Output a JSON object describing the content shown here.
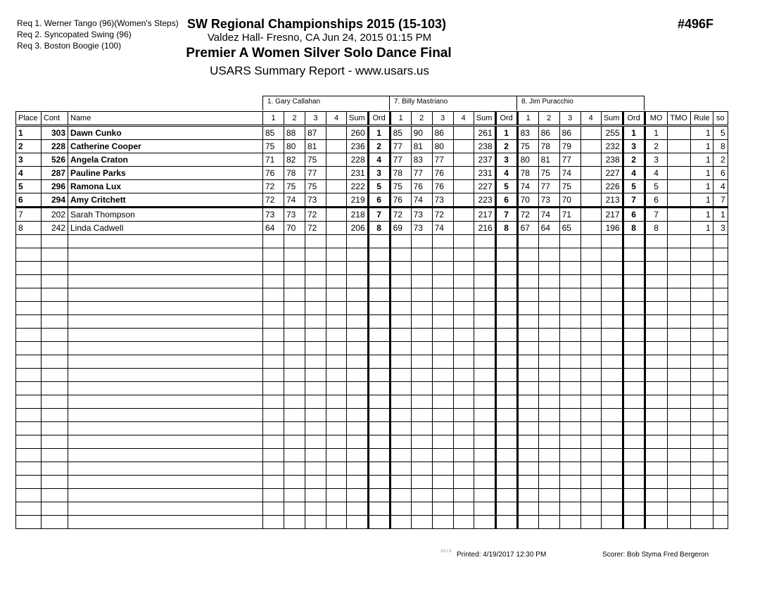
{
  "header": {
    "requirements": [
      "Req  1.  Werner Tango (96)(Women's Steps)",
      "Req  2.  Syncopated Swing (96)",
      "Req  3.  Boston Boogie (100)"
    ],
    "title": "SW Regional Championships 2015 (15-103)",
    "venue": "Valdez Hall- Fresno, CA  Jun 24, 2015  01:15 PM",
    "event": "Premier A Women Silver Solo Dance Final",
    "report": "USARS Summary Report - www.usars.us",
    "event_code": "#496F"
  },
  "judges": [
    "1.  Gary Callahan",
    "7.  Billy Mastriano",
    "8.  Jim Puracchio"
  ],
  "columns": {
    "place": "Place",
    "cont": "Cont",
    "name": "Name",
    "marks": [
      "1",
      "2",
      "3",
      "4",
      "Sum",
      "Ord"
    ],
    "mo": "MO",
    "tmo": "TMO",
    "rule": "Rule",
    "so": "so"
  },
  "rows": [
    {
      "place": "1",
      "cont": "303",
      "name": "Dawn Cunko",
      "j": [
        [
          "85",
          "88",
          "87",
          "",
          "260",
          "1"
        ],
        [
          "85",
          "90",
          "86",
          "",
          "261",
          "1"
        ],
        [
          "83",
          "86",
          "86",
          "",
          "255",
          "1"
        ]
      ],
      "mo": "1",
      "tmo": "",
      "rule": "1",
      "so": "5"
    },
    {
      "place": "2",
      "cont": "228",
      "name": "Catherine Cooper",
      "j": [
        [
          "75",
          "80",
          "81",
          "",
          "236",
          "2"
        ],
        [
          "77",
          "81",
          "80",
          "",
          "238",
          "2"
        ],
        [
          "75",
          "78",
          "79",
          "",
          "232",
          "3"
        ]
      ],
      "mo": "2",
      "tmo": "",
      "rule": "1",
      "so": "8"
    },
    {
      "place": "3",
      "cont": "526",
      "name": "Angela Craton",
      "j": [
        [
          "71",
          "82",
          "75",
          "",
          "228",
          "4"
        ],
        [
          "77",
          "83",
          "77",
          "",
          "237",
          "3"
        ],
        [
          "80",
          "81",
          "77",
          "",
          "238",
          "2"
        ]
      ],
      "mo": "3",
      "tmo": "",
      "rule": "1",
      "so": "2"
    },
    {
      "place": "4",
      "cont": "287",
      "name": "Pauline Parks",
      "j": [
        [
          "76",
          "78",
          "77",
          "",
          "231",
          "3"
        ],
        [
          "78",
          "77",
          "76",
          "",
          "231",
          "4"
        ],
        [
          "78",
          "75",
          "74",
          "",
          "227",
          "4"
        ]
      ],
      "mo": "4",
      "tmo": "",
      "rule": "1",
      "so": "6"
    },
    {
      "place": "5",
      "cont": "296",
      "name": "Ramona Lux",
      "j": [
        [
          "72",
          "75",
          "75",
          "",
          "222",
          "5"
        ],
        [
          "75",
          "76",
          "76",
          "",
          "227",
          "5"
        ],
        [
          "74",
          "77",
          "75",
          "",
          "226",
          "5"
        ]
      ],
      "mo": "5",
      "tmo": "",
      "rule": "1",
      "so": "4"
    },
    {
      "place": "6",
      "cont": "294",
      "name": "Amy Critchett",
      "j": [
        [
          "72",
          "74",
          "73",
          "",
          "219",
          "6"
        ],
        [
          "76",
          "74",
          "73",
          "",
          "223",
          "6"
        ],
        [
          "70",
          "73",
          "70",
          "",
          "213",
          "7"
        ]
      ],
      "mo": "6",
      "tmo": "",
      "rule": "1",
      "so": "7"
    },
    {
      "place": "7",
      "cont": "202",
      "name": "Sarah Thompson",
      "j": [
        [
          "73",
          "73",
          "72",
          "",
          "218",
          "7"
        ],
        [
          "72",
          "73",
          "72",
          "",
          "217",
          "7"
        ],
        [
          "72",
          "74",
          "71",
          "",
          "217",
          "6"
        ]
      ],
      "mo": "7",
      "tmo": "",
      "rule": "1",
      "so": "1"
    },
    {
      "place": "8",
      "cont": "242",
      "name": "Linda Cadwell",
      "j": [
        [
          "64",
          "70",
          "72",
          "",
          "206",
          "8"
        ],
        [
          "69",
          "73",
          "74",
          "",
          "216",
          "8"
        ],
        [
          "67",
          "64",
          "65",
          "",
          "196",
          "8"
        ]
      ],
      "mo": "8",
      "tmo": "",
      "rule": "1",
      "so": "3"
    }
  ],
  "footer": {
    "version": "3.8.1.8",
    "printed": "Printed:  4/19/2017  12:30 PM",
    "scorer": "Scorer:   Bob Styma Fred Bergeron"
  }
}
